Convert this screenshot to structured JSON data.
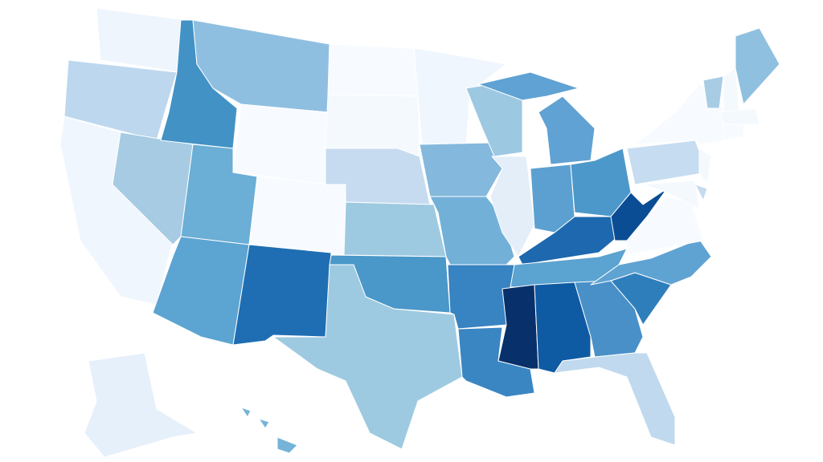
{
  "map": {
    "region_colors": [
      "#eef5fc",
      "#bdd7ee",
      "#f0f6fd",
      "#a6cbe3",
      "#4292c6",
      "#8fbfe0",
      "#f7fbff",
      "#6baed6",
      "#5ca4d2",
      "#f7fbff",
      "#1f6eb3",
      "#f7fbff",
      "#f4f9fe",
      "#c6dbef",
      "#9ecae1",
      "#4a97c9",
      "#9ecae1",
      "#f0f6fd",
      "#84b8dc",
      "#73b0d8",
      "#3883c1",
      "#3a86c3",
      "#9dc8e2",
      "#e3eef9",
      "#5fa2d3",
      "#5fa2d3",
      "#5ba0d0",
      "#4c98ca",
      "#1d68ae",
      "#5ba3d0",
      "#08306b",
      "#0f5ba3",
      "#4a90c8",
      "#c0d9ee",
      "#2e7ebc",
      "#5fa3d2",
      "#f7fbff",
      "#0b4d94",
      "#c6dcf0",
      "#f7fbff",
      "#a8cce4",
      "#f4f9fe",
      "#8fc0df",
      "#f4f9fe",
      "#f7fbff",
      "#f4f9fe",
      "#c6dbef",
      "#f4f9fe",
      "#e6f0fa",
      "#75b3d8",
      "#75b3d8",
      "#75b3d8"
    ]
  }
}
